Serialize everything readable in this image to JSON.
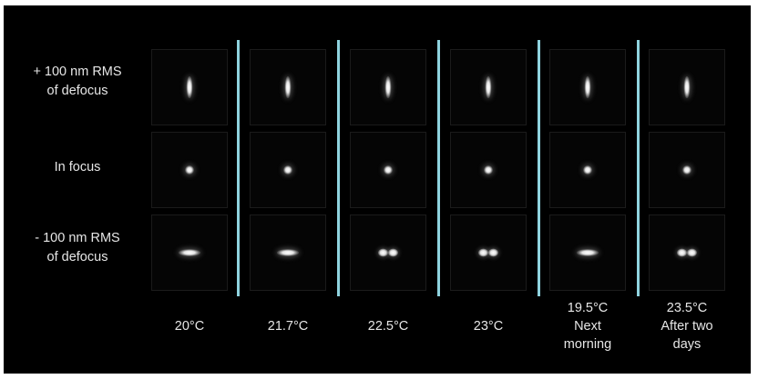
{
  "row_labels": [
    {
      "id": "plus-defocus",
      "lines": [
        "+ 100 nm RMS",
        "of defocus"
      ]
    },
    {
      "id": "in-focus",
      "lines": [
        "In focus"
      ]
    },
    {
      "id": "minus-defocus",
      "lines": [
        "- 100 nm RMS",
        "of defocus"
      ]
    }
  ],
  "columns": [
    {
      "lines": [
        "20°C"
      ],
      "spots": [
        "vertical",
        "round",
        "horizontal"
      ]
    },
    {
      "lines": [
        "21.7°C"
      ],
      "spots": [
        "vertical",
        "round",
        "horizontal"
      ]
    },
    {
      "lines": [
        "22.5°C"
      ],
      "spots": [
        "vertical",
        "round",
        "double"
      ]
    },
    {
      "lines": [
        "23°C"
      ],
      "spots": [
        "vertical",
        "round",
        "double"
      ]
    },
    {
      "lines": [
        "19.5°C",
        "Next",
        "morning"
      ],
      "spots": [
        "vertical",
        "round",
        "horizontal"
      ]
    },
    {
      "lines": [
        "23.5°C",
        "After two",
        "days"
      ],
      "spots": [
        "vertical",
        "round",
        "double"
      ]
    }
  ],
  "colors": {
    "background": "#000000",
    "divider": "#8fd3df",
    "text": "#e6e6e6",
    "page": "#ffffff"
  }
}
